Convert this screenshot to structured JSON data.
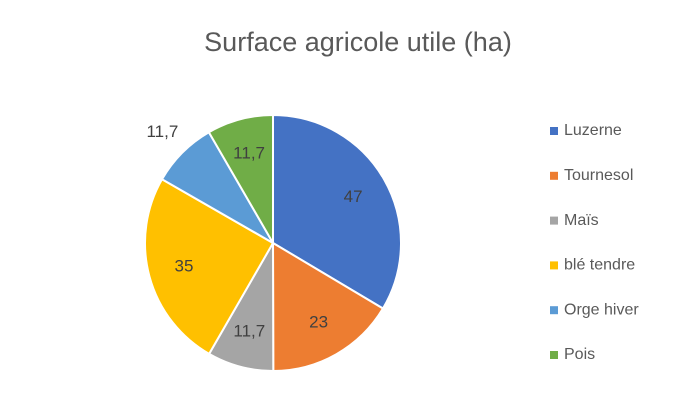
{
  "chart_data": {
    "type": "pie",
    "title": "Surface agricole utile (ha)",
    "categories": [
      "Luzerne",
      "Tournesol",
      "Maïs",
      "blé tendre",
      "Orge hiver",
      "Pois"
    ],
    "values": [
      47,
      23,
      11.7,
      35,
      11.7,
      11.7
    ],
    "value_labels": [
      "47",
      "23",
      "11,7",
      "35",
      "11,7",
      "11,7"
    ],
    "colors": [
      "#4472c4",
      "#ed7d31",
      "#a5a5a5",
      "#ffc000",
      "#5b9bd5",
      "#70ad47"
    ],
    "legend": "right"
  }
}
